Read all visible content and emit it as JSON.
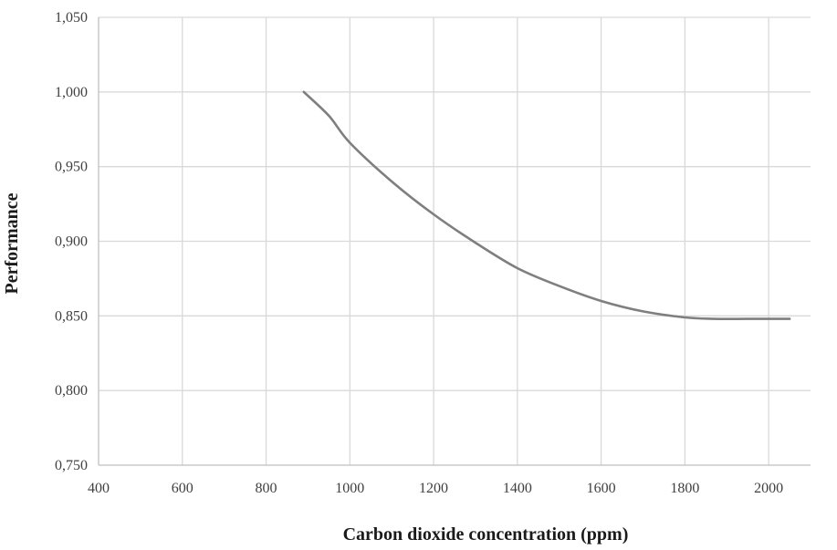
{
  "chart_data": {
    "type": "line",
    "title": "",
    "xlabel": "Carbon dioxide concentration (ppm)",
    "ylabel": "Performance",
    "xlim": [
      400,
      2100
    ],
    "ylim": [
      0.75,
      1.05
    ],
    "x_ticks": [
      400,
      600,
      800,
      1000,
      1200,
      1400,
      1600,
      1800,
      2000
    ],
    "x_tick_labels": [
      "400",
      "600",
      "800",
      "1000",
      "1200",
      "1400",
      "1600",
      "1800",
      "2000"
    ],
    "y_ticks": [
      0.75,
      0.8,
      0.85,
      0.9,
      0.95,
      1.0,
      1.05
    ],
    "y_tick_labels": [
      "0,750",
      "0,800",
      "0,850",
      "0,900",
      "0,950",
      "1,000",
      "1,050"
    ],
    "grid": true,
    "series": [
      {
        "color": "#7f7f7f",
        "x": [
          890,
          950,
          1000,
          1100,
          1200,
          1300,
          1400,
          1500,
          1600,
          1700,
          1800,
          1870,
          1950,
          2050
        ],
        "y": [
          1.0,
          0.984,
          0.966,
          0.94,
          0.918,
          0.899,
          0.882,
          0.87,
          0.86,
          0.853,
          0.849,
          0.848,
          0.848,
          0.848
        ]
      }
    ]
  }
}
